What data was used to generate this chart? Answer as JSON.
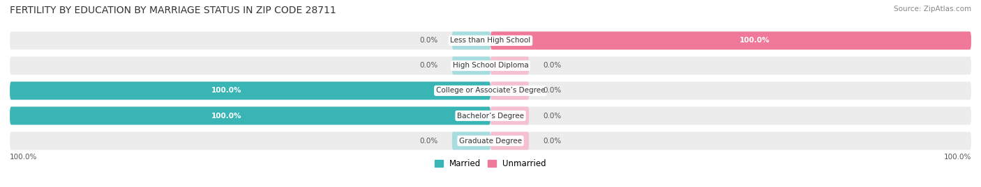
{
  "title": "FERTILITY BY EDUCATION BY MARRIAGE STATUS IN ZIP CODE 28711",
  "source": "Source: ZipAtlas.com",
  "categories": [
    "Less than High School",
    "High School Diploma",
    "College or Associate’s Degree",
    "Bachelor’s Degree",
    "Graduate Degree"
  ],
  "married_pct": [
    0.0,
    0.0,
    100.0,
    100.0,
    0.0
  ],
  "unmarried_pct": [
    100.0,
    0.0,
    0.0,
    0.0,
    0.0
  ],
  "married_color": "#3ab5b5",
  "unmarried_color": "#f07898",
  "married_light_color": "#a8dde0",
  "unmarried_light_color": "#f5c0d0",
  "row_bg_color": "#ececec",
  "background_color": "#ffffff",
  "title_fontsize": 10,
  "source_fontsize": 7.5,
  "label_fontsize": 7.5,
  "category_fontsize": 7.5,
  "legend_fontsize": 8.5,
  "axis_label_fontsize": 7.5,
  "figsize": [
    14.06,
    2.69
  ],
  "dpi": 100
}
